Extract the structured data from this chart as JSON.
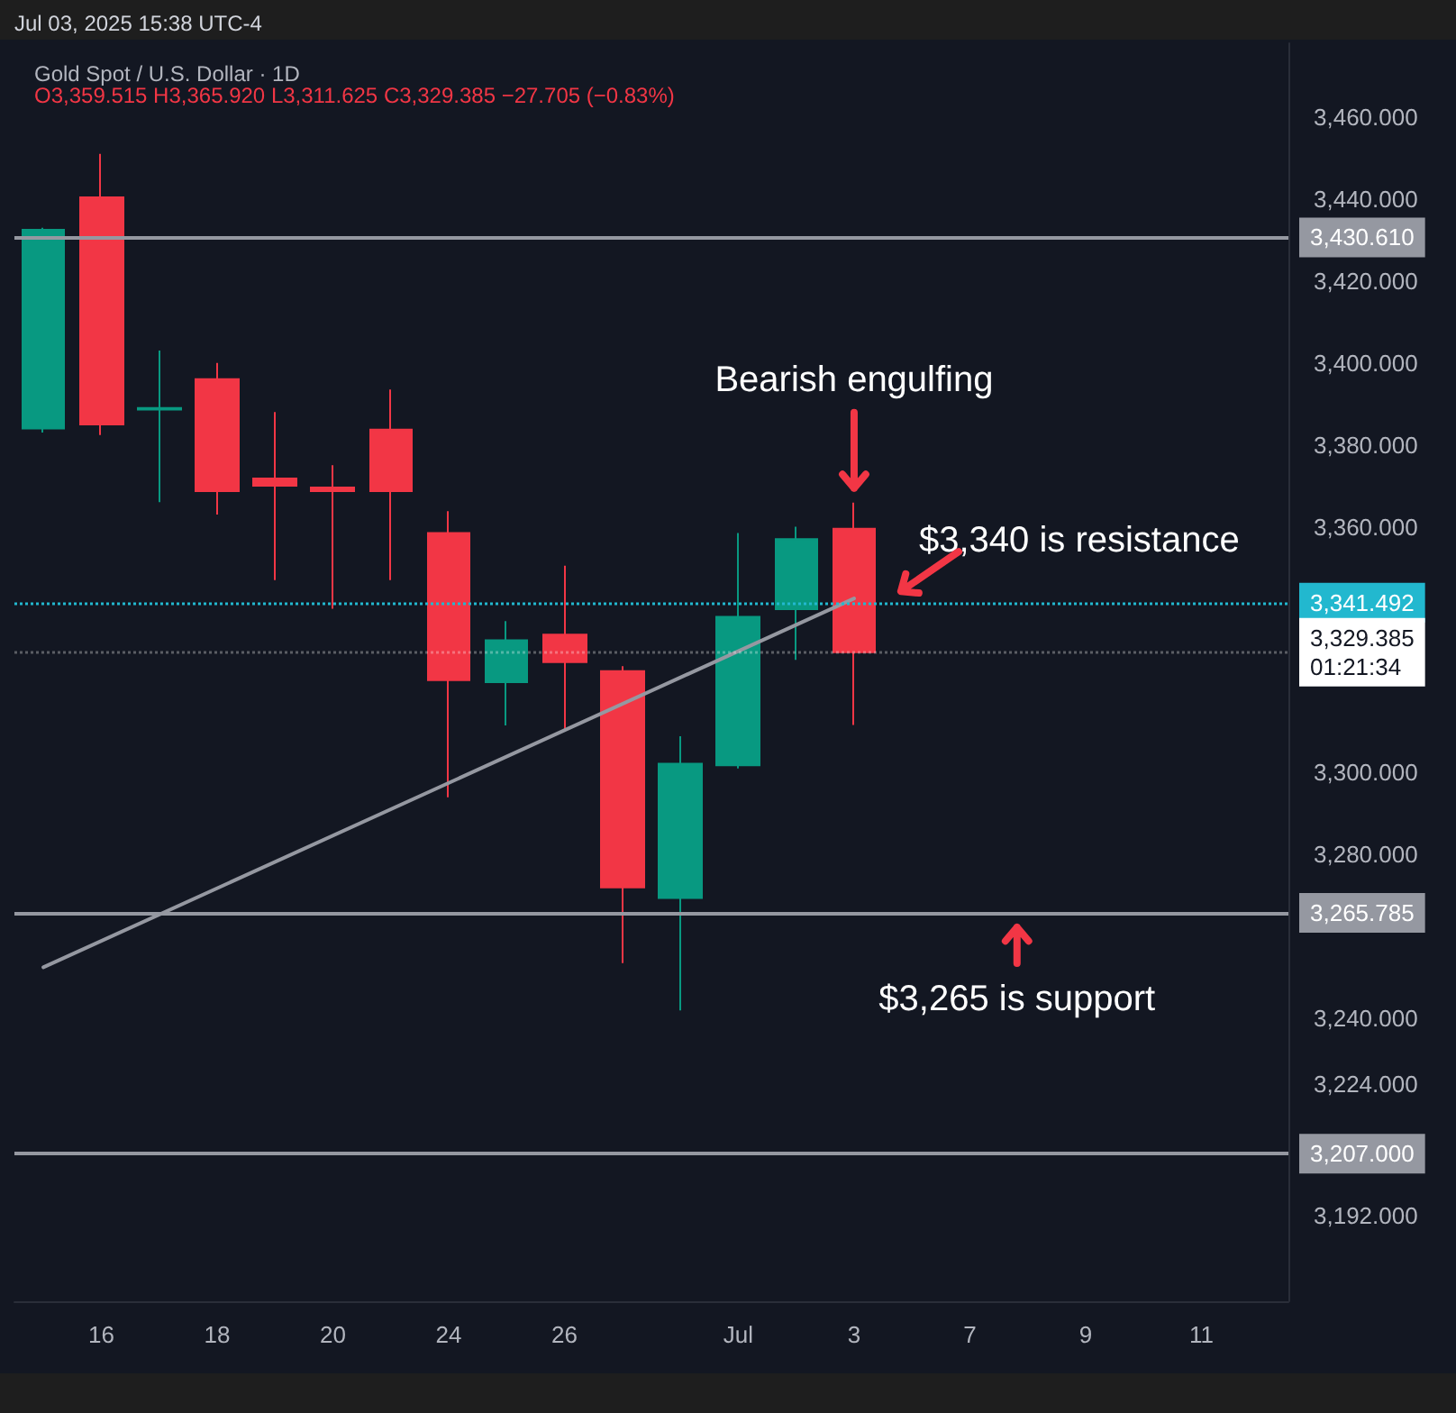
{
  "chart_data": {
    "type": "candlestick",
    "title": "Gold Spot / U.S. Dollar · 1D",
    "subtitle": "O3,359.515 H3,365.920 L3,311.625 C3,329.385 −27.705 (−0.83%)",
    "categories": [
      null,
      "16",
      null,
      "18",
      null,
      "20",
      null,
      "24",
      null,
      "26",
      null,
      null,
      "Jul",
      null,
      "3",
      null,
      "7",
      null,
      "9",
      null,
      "11",
      null
    ],
    "ohlc": [
      [
        3384,
        3433,
        3383,
        3432.5
      ],
      [
        3440.4,
        3451,
        3382.4,
        3385
      ],
      [
        3388.6,
        3403,
        3366,
        3389
      ],
      [
        3396,
        3400,
        3363,
        3368.7
      ],
      [
        3371.8,
        3388,
        3347,
        3370
      ],
      [
        3369.6,
        3375,
        3340,
        3368.7
      ],
      [
        3383.7,
        3393.5,
        3347,
        3368.7
      ],
      [
        3358.5,
        3363.8,
        3294,
        3322.6
      ],
      [
        3322.1,
        3337,
        3311.5,
        3332.3
      ],
      [
        3333.7,
        3350.5,
        3310,
        3327
      ],
      [
        3324.8,
        3326,
        3253.5,
        3272
      ],
      [
        3269.4,
        3308.9,
        3242,
        3302.2
      ],
      [
        3301.8,
        3358.5,
        3301,
        3338
      ],
      [
        3339.9,
        3360,
        3327.5,
        3357
      ],
      [
        3359.515,
        3365.92,
        3311.625,
        3329.385
      ],
      null,
      null,
      null,
      null,
      null,
      null,
      null
    ],
    "colors": [
      "#089981",
      "#f23645",
      "#089981",
      "#f23645",
      "#f23645",
      "#f23645",
      "#f23645",
      "#f23645",
      "#089981",
      "#f23645",
      "#f23645",
      "#089981",
      "#089981",
      "#089981",
      "#f23645",
      null,
      null,
      null,
      null,
      null,
      null,
      null
    ],
    "series": [
      {
        "type": "line",
        "color": "#9598a1",
        "values": [
          3252.5,
          null,
          null,
          null,
          null,
          null,
          null,
          null,
          null,
          null,
          null,
          null,
          null,
          null,
          3342.5,
          null,
          null,
          null,
          null,
          null,
          null,
          null
        ]
      }
    ],
    "ylim": [
      3171,
      3478
    ],
    "yticks": [
      {
        "value": 3192,
        "label": "3,192.000"
      },
      {
        "value": 3224,
        "label": "3,224.000"
      },
      {
        "value": 3240,
        "label": "3,240.000"
      },
      {
        "value": 3280,
        "label": "3,280.000"
      },
      {
        "value": 3300,
        "label": "3,300.000"
      },
      {
        "value": 3360,
        "label": "3,360.000"
      },
      {
        "value": 3380,
        "label": "3,380.000"
      },
      {
        "value": 3400,
        "label": "3,400.000"
      },
      {
        "value": 3420,
        "label": "3,420.000"
      },
      {
        "value": 3440,
        "label": "3,440.000"
      },
      {
        "value": 3460,
        "label": "3,460.000"
      }
    ],
    "ref_lines": [
      {
        "axis": "y",
        "value": 3430.61,
        "label": "3,430.610",
        "color": "#9598a1"
      },
      {
        "axis": "y",
        "value": 3265.785,
        "label": "3,265.785",
        "color": "#9598a1"
      },
      {
        "axis": "y",
        "value": 3207,
        "label": "3,207.000",
        "color": "#9598a1"
      },
      {
        "axis": "y",
        "value": 3341.492,
        "label": "3,341.492",
        "color": "#22b8cf",
        "line_style": "dotted"
      },
      {
        "axis": "y",
        "value": 3329.385,
        "label": "3,329.385\n01:21:34",
        "color": "#ffffff",
        "line_style": "dotted"
      }
    ],
    "annotations": [
      "Jul 03, 2025 15:38 UTC-4",
      "Bearish engulfing",
      "$3,340 is resistance",
      "$3,265 is support"
    ],
    "grid": false,
    "marker": "none",
    "line_style": "solid"
  }
}
